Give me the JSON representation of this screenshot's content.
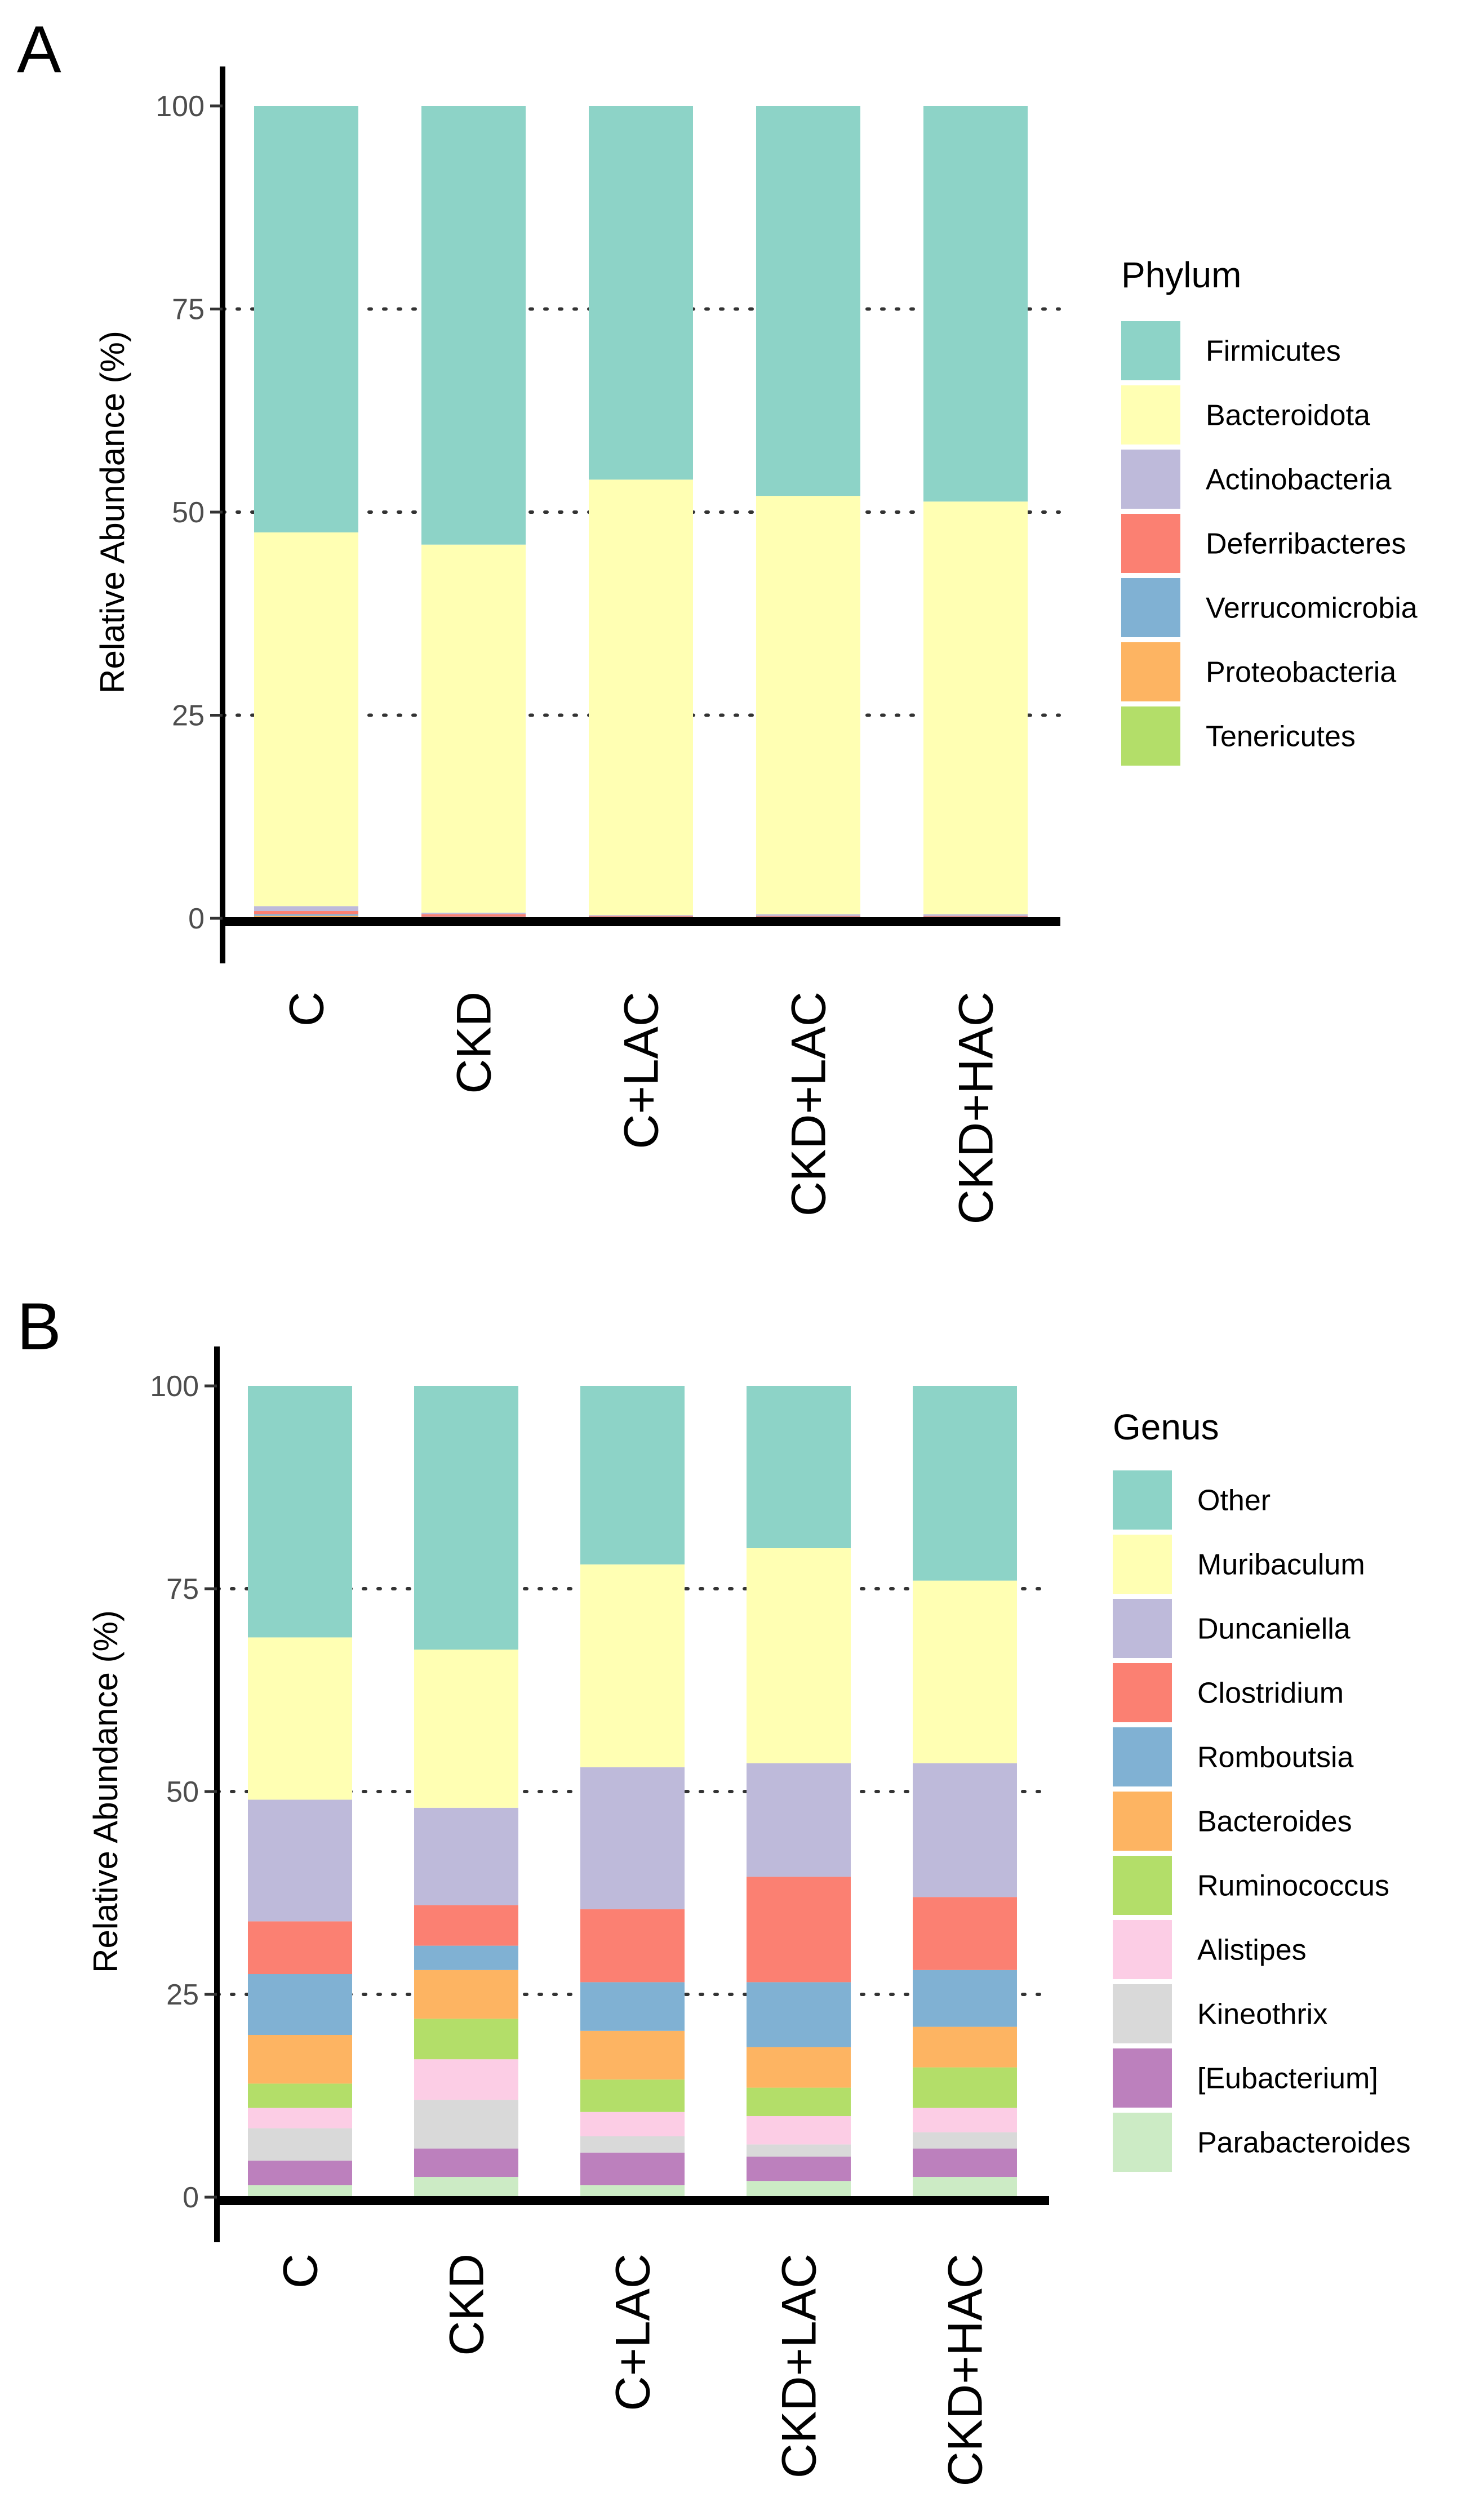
{
  "chart_data": [
    {
      "panel_label": "A",
      "type": "bar",
      "stacked": true,
      "ylabel": "Relative Abundance (%)",
      "xlabel": "",
      "ylim": [
        0,
        100
      ],
      "yticks": [
        0,
        25,
        50,
        75,
        100
      ],
      "grid": "dotted horizontal",
      "categories": [
        "C",
        "CKD",
        "C+LAC",
        "CKD+LAC",
        "CKD+HAC"
      ],
      "legend": {
        "title": "Phylum",
        "position": "right"
      },
      "series": [
        {
          "name": "Tenericutes",
          "color": "#B3DE69",
          "values": [
            0.1,
            0.0,
            0.0,
            0.0,
            0.0
          ]
        },
        {
          "name": "Proteobacteria",
          "color": "#FDB462",
          "values": [
            0.2,
            0.1,
            0.1,
            0.1,
            0.1
          ]
        },
        {
          "name": "Verrucomicrobia",
          "color": "#80B1D3",
          "values": [
            0.2,
            0.1,
            0.1,
            0.1,
            0.1
          ]
        },
        {
          "name": "Deferribacteres",
          "color": "#FB8072",
          "values": [
            0.4,
            0.3,
            0.1,
            0.1,
            0.1
          ]
        },
        {
          "name": "Actinobacteria",
          "color": "#BEBADA",
          "values": [
            0.6,
            0.2,
            0.1,
            0.2,
            0.2
          ]
        },
        {
          "name": "Bacteroidota",
          "color": "#FFFFB3",
          "values": [
            46.0,
            45.3,
            53.6,
            51.5,
            50.8
          ]
        },
        {
          "name": "Firmicutes",
          "color": "#8DD3C7",
          "values": [
            52.5,
            54.0,
            46.0,
            48.0,
            48.7
          ]
        }
      ]
    },
    {
      "panel_label": "B",
      "type": "bar",
      "stacked": true,
      "ylabel": "Relative Abundance (%)",
      "xlabel": "",
      "ylim": [
        0,
        100
      ],
      "yticks": [
        0,
        25,
        50,
        75,
        100
      ],
      "grid": "dotted horizontal",
      "categories": [
        "C",
        "CKD",
        "C+LAC",
        "CKD+LAC",
        "CKD+HAC"
      ],
      "legend": {
        "title": "Genus",
        "position": "right"
      },
      "series": [
        {
          "name": "Parabacteroides",
          "color": "#CCEBC5",
          "values": [
            1.5,
            2.5,
            1.5,
            2.0,
            2.5
          ]
        },
        {
          "name": "[Eubacterium]",
          "color": "#BC80BD",
          "values": [
            3.0,
            3.5,
            4.0,
            3.0,
            3.5
          ]
        },
        {
          "name": "Kineothrix",
          "color": "#D9D9D9",
          "values": [
            4.0,
            6.0,
            2.0,
            1.5,
            2.0
          ]
        },
        {
          "name": "Alistipes",
          "color": "#FCCDE5",
          "values": [
            2.5,
            5.0,
            3.0,
            3.5,
            3.0
          ]
        },
        {
          "name": "Ruminococcus",
          "color": "#B3DE69",
          "values": [
            3.0,
            5.0,
            4.0,
            3.5,
            5.0
          ]
        },
        {
          "name": "Bacteroides",
          "color": "#FDB462",
          "values": [
            6.0,
            6.0,
            6.0,
            5.0,
            5.0
          ]
        },
        {
          "name": "Romboutsia",
          "color": "#80B1D3",
          "values": [
            7.5,
            3.0,
            6.0,
            8.0,
            7.0
          ]
        },
        {
          "name": "Clostridium",
          "color": "#FB8072",
          "values": [
            6.5,
            5.0,
            9.0,
            13.0,
            9.0
          ]
        },
        {
          "name": "Duncaniella",
          "color": "#BEBADA",
          "values": [
            15.0,
            12.0,
            17.5,
            14.0,
            16.5
          ]
        },
        {
          "name": "Muribaculum",
          "color": "#FFFFB3",
          "values": [
            20.0,
            19.5,
            25.0,
            26.5,
            22.5
          ]
        },
        {
          "name": "Other",
          "color": "#8DD3C7",
          "values": [
            31.0,
            32.5,
            22.0,
            20.0,
            24.0
          ]
        }
      ]
    }
  ]
}
